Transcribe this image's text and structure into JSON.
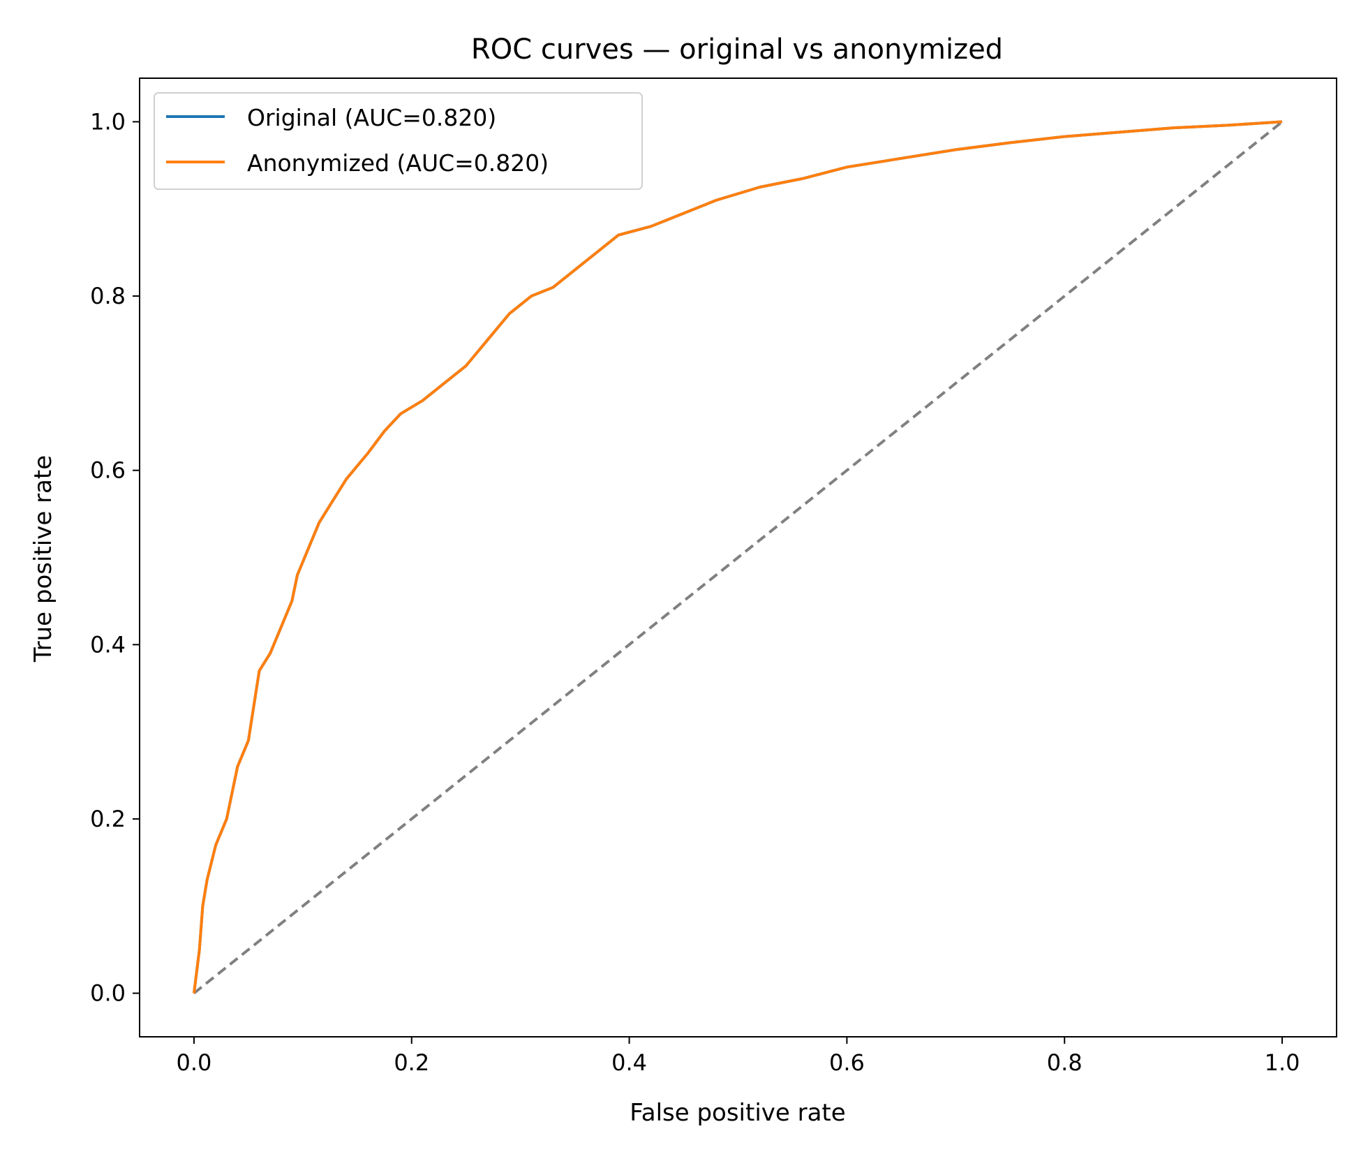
{
  "chart_data": {
    "type": "line",
    "title": "ROC curves — original vs anonymized",
    "xlabel": "False positive rate",
    "ylabel": "True positive rate",
    "xlim": [
      -0.05,
      1.05
    ],
    "ylim": [
      -0.05,
      1.05
    ],
    "x_ticks": [
      0.0,
      0.2,
      0.4,
      0.6,
      0.8,
      1.0
    ],
    "x_tick_labels": [
      "0.0",
      "0.2",
      "0.4",
      "0.6",
      "0.8",
      "1.0"
    ],
    "y_ticks": [
      0.0,
      0.2,
      0.4,
      0.6,
      0.8,
      1.0
    ],
    "y_tick_labels": [
      "0.0",
      "0.2",
      "0.4",
      "0.6",
      "0.8",
      "1.0"
    ],
    "grid": false,
    "legend_position": "upper-left",
    "series": [
      {
        "name": "Original (AUC=0.820)",
        "color": "#1f77b4",
        "points": [
          [
            0,
            0
          ],
          [
            0.005,
            0.05
          ],
          [
            0.008,
            0.1
          ],
          [
            0.012,
            0.13
          ],
          [
            0.02,
            0.17
          ],
          [
            0.03,
            0.2
          ],
          [
            0.035,
            0.23
          ],
          [
            0.04,
            0.26
          ],
          [
            0.05,
            0.29
          ],
          [
            0.055,
            0.33
          ],
          [
            0.06,
            0.37
          ],
          [
            0.07,
            0.39
          ],
          [
            0.08,
            0.42
          ],
          [
            0.09,
            0.45
          ],
          [
            0.095,
            0.48
          ],
          [
            0.105,
            0.51
          ],
          [
            0.115,
            0.54
          ],
          [
            0.125,
            0.56
          ],
          [
            0.14,
            0.59
          ],
          [
            0.16,
            0.62
          ],
          [
            0.175,
            0.645
          ],
          [
            0.19,
            0.665
          ],
          [
            0.21,
            0.68
          ],
          [
            0.23,
            0.7
          ],
          [
            0.25,
            0.72
          ],
          [
            0.27,
            0.75
          ],
          [
            0.29,
            0.78
          ],
          [
            0.31,
            0.8
          ],
          [
            0.33,
            0.81
          ],
          [
            0.35,
            0.83
          ],
          [
            0.37,
            0.85
          ],
          [
            0.39,
            0.87
          ],
          [
            0.42,
            0.88
          ],
          [
            0.45,
            0.895
          ],
          [
            0.48,
            0.91
          ],
          [
            0.52,
            0.925
          ],
          [
            0.56,
            0.935
          ],
          [
            0.6,
            0.948
          ],
          [
            0.65,
            0.958
          ],
          [
            0.7,
            0.968
          ],
          [
            0.75,
            0.976
          ],
          [
            0.8,
            0.983
          ],
          [
            0.85,
            0.988
          ],
          [
            0.9,
            0.993
          ],
          [
            0.95,
            0.996
          ],
          [
            1.0,
            1.0
          ]
        ]
      },
      {
        "name": "Anonymized (AUC=0.820)",
        "color": "#ff7f0e",
        "points": [
          [
            0,
            0
          ],
          [
            0.005,
            0.05
          ],
          [
            0.008,
            0.1
          ],
          [
            0.012,
            0.13
          ],
          [
            0.02,
            0.17
          ],
          [
            0.03,
            0.2
          ],
          [
            0.035,
            0.23
          ],
          [
            0.04,
            0.26
          ],
          [
            0.05,
            0.29
          ],
          [
            0.055,
            0.33
          ],
          [
            0.06,
            0.37
          ],
          [
            0.07,
            0.39
          ],
          [
            0.08,
            0.42
          ],
          [
            0.09,
            0.45
          ],
          [
            0.095,
            0.48
          ],
          [
            0.105,
            0.51
          ],
          [
            0.115,
            0.54
          ],
          [
            0.125,
            0.56
          ],
          [
            0.14,
            0.59
          ],
          [
            0.16,
            0.62
          ],
          [
            0.175,
            0.645
          ],
          [
            0.19,
            0.665
          ],
          [
            0.21,
            0.68
          ],
          [
            0.23,
            0.7
          ],
          [
            0.25,
            0.72
          ],
          [
            0.27,
            0.75
          ],
          [
            0.29,
            0.78
          ],
          [
            0.31,
            0.8
          ],
          [
            0.33,
            0.81
          ],
          [
            0.35,
            0.83
          ],
          [
            0.37,
            0.85
          ],
          [
            0.39,
            0.87
          ],
          [
            0.42,
            0.88
          ],
          [
            0.45,
            0.895
          ],
          [
            0.48,
            0.91
          ],
          [
            0.52,
            0.925
          ],
          [
            0.56,
            0.935
          ],
          [
            0.6,
            0.948
          ],
          [
            0.65,
            0.958
          ],
          [
            0.7,
            0.968
          ],
          [
            0.75,
            0.976
          ],
          [
            0.8,
            0.983
          ],
          [
            0.85,
            0.988
          ],
          [
            0.9,
            0.993
          ],
          [
            0.95,
            0.996
          ],
          [
            1.0,
            1.0
          ]
        ]
      }
    ],
    "reference_line": {
      "points": [
        [
          0,
          0
        ],
        [
          1,
          1
        ]
      ],
      "color": "#808080",
      "style": "dashed"
    }
  }
}
